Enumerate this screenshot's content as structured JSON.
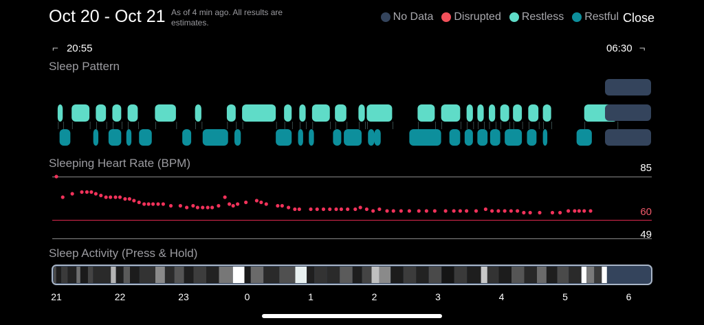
{
  "header": {
    "title": "Oct 20 - Oct 21",
    "as_of": "As of 4 min ago. All results are estimates.",
    "close_label": "Close"
  },
  "legend": [
    {
      "label": "No Data",
      "color": "#34445c"
    },
    {
      "label": "Disrupted",
      "color": "#f2505a"
    },
    {
      "label": "Restless",
      "color": "#5fdcc8"
    },
    {
      "label": "Restful",
      "color": "#0d8f9c"
    }
  ],
  "time_range": {
    "start": "20:55",
    "end": "06:30"
  },
  "sections": {
    "sleep_pattern": "Sleep Pattern",
    "heart_rate": "Sleeping Heart Rate (BPM)",
    "activity": "Sleep Activity (Press & Hold)"
  },
  "heart_rate_refs": {
    "max": "85",
    "threshold": "60",
    "min": "49"
  },
  "x_axis_ticks": [
    "21",
    "22",
    "23",
    "0",
    "1",
    "2",
    "3",
    "4",
    "5",
    "6"
  ],
  "colors": {
    "restless": "#5fdcc8",
    "restful": "#0d8f9c",
    "no_data": "#34445c",
    "hr_dot": "#f0325a",
    "threshold": "#e0294f"
  },
  "chart_data": [
    {
      "type": "scatter",
      "title": "Sleeping Heart Rate (BPM)",
      "x_unit": "hours after 21:00",
      "ylim": [
        49,
        85
      ],
      "points": [
        [
          0.0,
          85
        ],
        [
          0.1,
          73
        ],
        [
          0.25,
          75
        ],
        [
          0.4,
          76
        ],
        [
          0.48,
          76
        ],
        [
          0.55,
          76
        ],
        [
          0.62,
          75
        ],
        [
          0.7,
          74
        ],
        [
          0.78,
          73
        ],
        [
          0.85,
          73
        ],
        [
          0.93,
          73
        ],
        [
          1.0,
          73
        ],
        [
          1.08,
          72
        ],
        [
          1.15,
          72
        ],
        [
          1.22,
          71
        ],
        [
          1.3,
          70
        ],
        [
          1.38,
          69
        ],
        [
          1.45,
          69
        ],
        [
          1.52,
          69
        ],
        [
          1.6,
          69
        ],
        [
          1.68,
          69
        ],
        [
          1.8,
          68
        ],
        [
          1.95,
          68
        ],
        [
          2.05,
          67
        ],
        [
          2.15,
          68
        ],
        [
          2.22,
          67
        ],
        [
          2.3,
          67
        ],
        [
          2.38,
          67
        ],
        [
          2.45,
          67
        ],
        [
          2.55,
          68
        ],
        [
          2.65,
          73
        ],
        [
          2.72,
          69
        ],
        [
          2.78,
          68
        ],
        [
          2.85,
          69
        ],
        [
          2.98,
          70
        ],
        [
          3.15,
          71
        ],
        [
          3.22,
          70
        ],
        [
          3.3,
          69
        ],
        [
          3.48,
          68
        ],
        [
          3.55,
          68
        ],
        [
          3.65,
          67
        ],
        [
          3.75,
          66
        ],
        [
          3.82,
          66
        ],
        [
          4.0,
          66
        ],
        [
          4.1,
          66
        ],
        [
          4.2,
          66
        ],
        [
          4.3,
          66
        ],
        [
          4.4,
          66
        ],
        [
          4.48,
          66
        ],
        [
          4.58,
          66
        ],
        [
          4.7,
          66
        ],
        [
          4.78,
          67
        ],
        [
          4.88,
          66
        ],
        [
          4.98,
          65
        ],
        [
          5.08,
          66
        ],
        [
          5.2,
          65
        ],
        [
          5.3,
          65
        ],
        [
          5.42,
          65
        ],
        [
          5.55,
          65
        ],
        [
          5.7,
          65
        ],
        [
          5.82,
          65
        ],
        [
          5.95,
          65
        ],
        [
          6.12,
          65
        ],
        [
          6.25,
          65
        ],
        [
          6.35,
          65
        ],
        [
          6.45,
          65
        ],
        [
          6.6,
          65
        ],
        [
          6.75,
          66
        ],
        [
          6.85,
          65
        ],
        [
          6.95,
          65
        ],
        [
          7.05,
          65
        ],
        [
          7.15,
          65
        ],
        [
          7.25,
          65
        ],
        [
          7.35,
          64
        ],
        [
          7.45,
          64
        ],
        [
          7.6,
          64
        ],
        [
          7.8,
          64
        ],
        [
          7.92,
          64
        ],
        [
          8.05,
          65
        ],
        [
          8.15,
          65
        ],
        [
          8.22,
          65
        ],
        [
          8.3,
          65
        ],
        [
          8.4,
          65
        ]
      ]
    }
  ],
  "sleep_pattern": {
    "restless": [
      [
        0.02,
        0.1
      ],
      [
        0.24,
        0.52
      ],
      [
        0.62,
        0.78
      ],
      [
        0.88,
        1.02
      ],
      [
        1.12,
        1.28
      ],
      [
        1.55,
        1.88
      ],
      [
        2.18,
        2.28
      ],
      [
        2.68,
        2.82
      ],
      [
        2.92,
        3.45
      ],
      [
        3.58,
        3.7
      ],
      [
        3.82,
        3.92
      ],
      [
        4.02,
        4.3
      ],
      [
        4.38,
        4.56
      ],
      [
        4.75,
        4.85
      ],
      [
        4.88,
        5.28
      ],
      [
        5.68,
        5.95
      ],
      [
        6.05,
        6.35
      ],
      [
        6.45,
        6.55
      ],
      [
        6.62,
        6.72
      ],
      [
        6.8,
        6.9
      ],
      [
        6.98,
        7.12
      ],
      [
        7.18,
        7.32
      ],
      [
        7.42,
        7.58
      ],
      [
        7.65,
        7.78
      ],
      [
        8.3,
        8.82
      ]
    ],
    "restful": [
      [
        0.05,
        0.22
      ],
      [
        0.58,
        0.66
      ],
      [
        0.82,
        1.02
      ],
      [
        1.1,
        1.18
      ],
      [
        1.3,
        1.5
      ],
      [
        1.98,
        2.12
      ],
      [
        2.3,
        2.7
      ],
      [
        2.8,
        2.9
      ],
      [
        3.45,
        3.7
      ],
      [
        3.8,
        3.88
      ],
      [
        3.97,
        4.05
      ],
      [
        4.35,
        4.48
      ],
      [
        4.52,
        4.8
      ],
      [
        4.9,
        5.0
      ],
      [
        5.0,
        5.1
      ],
      [
        5.55,
        6.05
      ],
      [
        6.18,
        6.35
      ],
      [
        6.42,
        6.55
      ],
      [
        6.62,
        6.78
      ],
      [
        6.82,
        6.98
      ],
      [
        7.05,
        7.32
      ],
      [
        7.4,
        7.55
      ],
      [
        7.65,
        7.72
      ],
      [
        8.18,
        8.42
      ]
    ],
    "no_data": [
      [
        8.82,
        9.52
      ]
    ]
  },
  "activity_strip": [
    [
      "#4c4c4c",
      0.0
    ],
    [
      "#1e1e1e",
      0.04
    ],
    [
      "#3a3a3a",
      0.12
    ],
    [
      "#232323",
      0.22
    ],
    [
      "#6e6e6e",
      0.36
    ],
    [
      "#1a1a1a",
      0.42
    ],
    [
      "#444",
      0.54
    ],
    [
      "#2a2a2a",
      0.62
    ],
    [
      "#b5b5b5",
      0.9
    ],
    [
      "#202020",
      0.98
    ],
    [
      "#5a5a5a",
      1.1
    ],
    [
      "#1c1c1c",
      1.2
    ],
    [
      "#333",
      1.35
    ],
    [
      "#8a8a8a",
      1.6
    ],
    [
      "#2b2b2b",
      1.75
    ],
    [
      "#555",
      1.9
    ],
    [
      "#1e1e1e",
      2.05
    ],
    [
      "#3d3d3d",
      2.2
    ],
    [
      "#222",
      2.4
    ],
    [
      "#777",
      2.6
    ],
    [
      "#ffffff",
      2.82
    ],
    [
      "#1a1a1a",
      3.0
    ],
    [
      "#6a6a6a",
      3.1
    ],
    [
      "#2a2a2a",
      3.3
    ],
    [
      "#505050",
      3.55
    ],
    [
      "#e8f0f0",
      3.8
    ],
    [
      "#1f1f1f",
      3.98
    ],
    [
      "#333",
      4.1
    ],
    [
      "#2a2a2a",
      4.3
    ],
    [
      "#5b5b5b",
      4.5
    ],
    [
      "#1e1e1e",
      4.7
    ],
    [
      "#444",
      4.85
    ],
    [
      "#c0c0c0",
      5.0
    ],
    [
      "#8a8a8a",
      5.12
    ],
    [
      "#1c1c1c",
      5.3
    ],
    [
      "#3c3c3c",
      5.5
    ],
    [
      "#222",
      5.7
    ],
    [
      "#4a4a4a",
      5.9
    ],
    [
      "#151515",
      6.1
    ],
    [
      "#3a3a3a",
      6.3
    ],
    [
      "#1e1e1e",
      6.5
    ],
    [
      "#c8c8c8",
      6.72
    ],
    [
      "#333",
      6.82
    ],
    [
      "#1c1c1c",
      7.0
    ],
    [
      "#555",
      7.2
    ],
    [
      "#282828",
      7.4
    ],
    [
      "#6a6a6a",
      7.6
    ],
    [
      "#1e1e1e",
      7.75
    ],
    [
      "#4a4a4a",
      7.92
    ],
    [
      "#2a2a2a",
      8.1
    ],
    [
      "#ffffff",
      8.3
    ],
    [
      "#7a7a7a",
      8.38
    ],
    [
      "#3a3a3a",
      8.5
    ],
    [
      "#ffffff",
      8.62
    ],
    [
      "#34445c",
      8.7
    ]
  ]
}
